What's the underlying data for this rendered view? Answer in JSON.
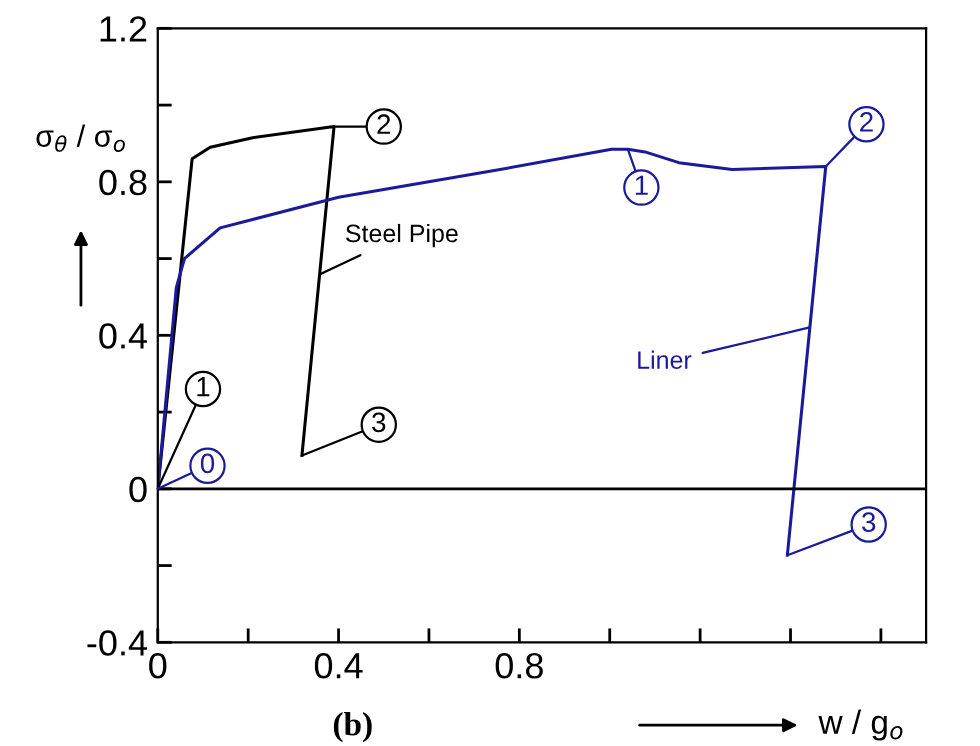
{
  "chart_data": {
    "type": "line",
    "xlabel": "w / g$_{o}$",
    "ylabel": "σ$_{θ}$ / σ$_{o}$",
    "series": [
      {
        "name": "Steel Pipe",
        "color": "#000000",
        "x": [
          0,
          0.076,
          0.116,
          0.21,
          0.39,
          0.319
        ],
        "values": [
          0,
          0.86,
          0.89,
          0.915,
          0.944,
          0.087
        ]
      },
      {
        "name": "Liner",
        "color": "#1a1a9a",
        "x": [
          0,
          0.041,
          0.059,
          0.138,
          0.4,
          0.738,
          1.004,
          1.04,
          1.078,
          1.153,
          1.271,
          1.478,
          1.393
        ],
        "values": [
          0,
          0.524,
          0.6,
          0.68,
          0.76,
          0.828,
          0.885,
          0.885,
          0.878,
          0.85,
          0.832,
          0.84,
          -0.173
        ]
      }
    ],
    "annotations": [
      {
        "text": "1",
        "x": 0,
        "y": 0
      },
      {
        "text": "2",
        "x": 0.39,
        "y": 0.944
      },
      {
        "text": "3",
        "x": 0.319,
        "y": 0.087
      },
      {
        "text": "0",
        "x": 0,
        "y": 0
      },
      {
        "text": "1",
        "x": 1.04,
        "y": 0.885
      },
      {
        "text": "2",
        "x": 1.478,
        "y": 0.84
      },
      {
        "text": "3",
        "x": 1.393,
        "y": -0.173
      },
      "(b)"
    ],
    "xlim": [
      0,
      1.7
    ],
    "ylim": [
      -0.4,
      1.2
    ],
    "xticks": [
      0,
      {
        "value": 0.2,
        "label": null
      },
      0.4,
      {
        "value": 0.6,
        "label": null
      },
      0.8,
      {
        "value": 1.0,
        "label": null
      },
      {
        "value": 1.2,
        "label": null
      },
      {
        "value": 1.4,
        "label": null
      },
      {
        "value": 1.6,
        "label": null
      }
    ],
    "yticks": [
      {
        "value": -0.4,
        "label": "-0.4"
      },
      {
        "value": -0.2,
        "label": null
      },
      0,
      {
        "value": 0.2,
        "label": null
      },
      0.4,
      {
        "value": 0.6,
        "label": null
      },
      0.8,
      {
        "value": 1.0,
        "label": null
      },
      1.2
    ],
    "ref_lines": [
      {
        "axis": "y",
        "value": 0,
        "color": "#000000"
      }
    ],
    "grid": false,
    "legend": false,
    "marker": "none",
    "line_style": "solid"
  }
}
